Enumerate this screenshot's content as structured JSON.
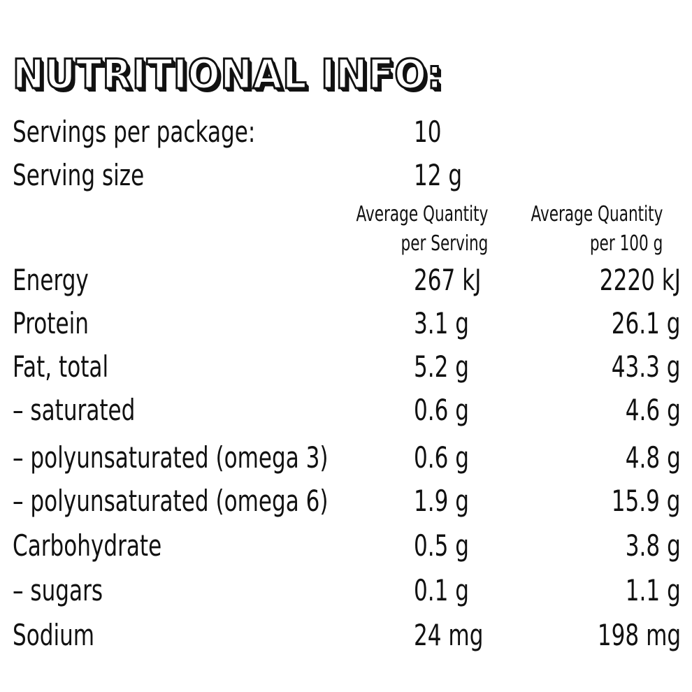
{
  "title": "NUTRITIONAL INFO:",
  "servings_per_package": {
    "label": "Servings per package:",
    "value": "10"
  },
  "serving_size": {
    "label": "Serving size",
    "value": "12 g"
  },
  "columns": {
    "per_serving": {
      "line1": "Average Quantity",
      "line2": "per Serving"
    },
    "per_100g": {
      "line1": "Average Quantity",
      "line2": "per 100 g"
    }
  },
  "rows": [
    {
      "label": "Energy",
      "per_serving": "267 kJ",
      "per_100g": "2220 kJ"
    },
    {
      "label": "Protein",
      "per_serving": "3.1 g",
      "per_100g": "26.1 g"
    },
    {
      "label": "Fat, total",
      "per_serving": "5.2 g",
      "per_100g": "43.3 g"
    },
    {
      "label": "– saturated",
      "per_serving": "0.6 g",
      "per_100g": "4.6 g"
    },
    {
      "label": "– polyunsaturated (omega 3)",
      "per_serving": "0.6 g",
      "per_100g": "4.8 g"
    },
    {
      "label": "– polyunsaturated (omega 6)",
      "per_serving": "1.9 g",
      "per_100g": "15.9 g"
    },
    {
      "label": "Carbohydrate",
      "per_serving": "0.5 g",
      "per_100g": "3.8 g"
    },
    {
      "label": "– sugars",
      "per_serving": "0.1 g",
      "per_100g": "1.1 g"
    },
    {
      "label": "Sodium",
      "per_serving": "24 mg",
      "per_100g": "198 mg"
    }
  ]
}
